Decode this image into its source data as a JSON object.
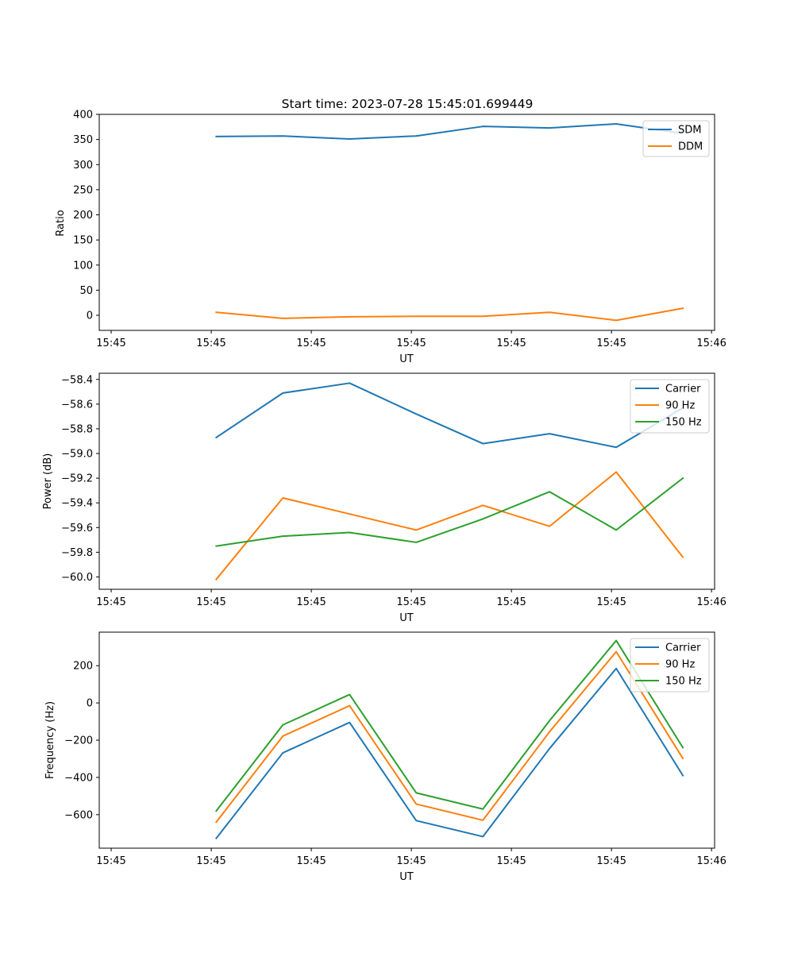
{
  "chart_data": [
    {
      "type": "line",
      "title": "Start time: 2023-07-28 15:45:01.699449",
      "xlabel": "UT",
      "ylabel": "Ratio",
      "ylim": [
        -30,
        400
      ],
      "yticks": [
        0,
        50,
        100,
        150,
        200,
        250,
        300,
        350,
        400
      ],
      "ytick_labels": [
        "0",
        "50",
        "100",
        "150",
        "200",
        "250",
        "300",
        "350",
        "400"
      ],
      "x": [
        1,
        2,
        3,
        4,
        5,
        6,
        7,
        8
      ],
      "xlim": [
        -0.755,
        8.476
      ],
      "xticks": [
        -0.576,
        0.925,
        2.426,
        3.927,
        5.428,
        6.929
      ],
      "xtick_labels": [
        "15:45",
        "15:45",
        "15:45",
        "15:45",
        "15:45",
        "15:45"
      ],
      "xticks_extra": [
        {
          "x": 8.43,
          "label": "15:46"
        }
      ],
      "series": [
        {
          "name": "SDM",
          "color": "#1f77b4",
          "values": [
            356,
            357,
            351,
            357,
            376,
            373,
            381,
            362
          ]
        },
        {
          "name": "DDM",
          "color": "#ff7f0e",
          "values": [
            6,
            -6,
            -3,
            -2,
            -2,
            6,
            -10,
            14
          ]
        }
      ],
      "legend": "top-right"
    },
    {
      "type": "line",
      "title": "",
      "xlabel": "UT",
      "ylabel": "Power (dB)",
      "ylim": [
        -60.1,
        -58.35
      ],
      "yticks": [
        -60.0,
        -59.8,
        -59.6,
        -59.4,
        -59.2,
        -59.0,
        -58.8,
        -58.6,
        -58.4
      ],
      "ytick_labels": [
        "−60.0",
        "−59.8",
        "−59.6",
        "−59.4",
        "−59.2",
        "−59.0",
        "−58.8",
        "−58.6",
        "−58.4"
      ],
      "x": [
        1,
        2,
        3,
        4,
        5,
        6,
        7,
        8
      ],
      "xlim": [
        -0.755,
        8.476
      ],
      "xticks": [
        -0.576,
        0.925,
        2.426,
        3.927,
        5.428,
        6.929
      ],
      "xtick_labels": [
        "15:45",
        "15:45",
        "15:45",
        "15:45",
        "15:45",
        "15:45"
      ],
      "xticks_extra": [
        {
          "x": 8.43,
          "label": "15:46"
        }
      ],
      "series": [
        {
          "name": "Carrier",
          "color": "#1f77b4",
          "values": [
            -58.87,
            -58.51,
            -58.43,
            -58.68,
            -58.92,
            -58.84,
            -58.95,
            -58.63
          ]
        },
        {
          "name": "90 Hz",
          "color": "#ff7f0e",
          "values": [
            -60.02,
            -59.36,
            -59.49,
            -59.62,
            -59.42,
            -59.59,
            -59.15,
            -59.84
          ]
        },
        {
          "name": "150 Hz",
          "color": "#2ca02c",
          "values": [
            -59.75,
            -59.67,
            -59.64,
            -59.72,
            -59.53,
            -59.31,
            -59.62,
            -59.2
          ]
        }
      ],
      "legend": "top-right"
    },
    {
      "type": "line",
      "title": "",
      "xlabel": "UT",
      "ylabel": "Frequency (Hz)",
      "ylim": [
        -780,
        380
      ],
      "yticks": [
        -600,
        -400,
        -200,
        0,
        200
      ],
      "ytick_labels": [
        "−600",
        "−400",
        "−200",
        "0",
        "200"
      ],
      "x": [
        1,
        2,
        3,
        4,
        5,
        6,
        7,
        8
      ],
      "xlim": [
        -0.755,
        8.476
      ],
      "xticks": [
        -0.576,
        0.925,
        2.426,
        3.927,
        5.428,
        6.929
      ],
      "xtick_labels": [
        "15:45",
        "15:45",
        "15:45",
        "15:45",
        "15:45",
        "15:45"
      ],
      "xticks_extra": [
        {
          "x": 8.43,
          "label": "15:46"
        }
      ],
      "series": [
        {
          "name": "Carrier",
          "color": "#1f77b4",
          "values": [
            -727,
            -268,
            -105,
            -632,
            -718,
            -245,
            185,
            -390
          ]
        },
        {
          "name": "90 Hz",
          "color": "#ff7f0e",
          "values": [
            -640,
            -178,
            -15,
            -543,
            -630,
            -155,
            275,
            -298
          ]
        },
        {
          "name": "150 Hz",
          "color": "#2ca02c",
          "values": [
            -580,
            -118,
            45,
            -483,
            -570,
            -95,
            335,
            -240
          ]
        }
      ],
      "legend": "top-right"
    }
  ]
}
